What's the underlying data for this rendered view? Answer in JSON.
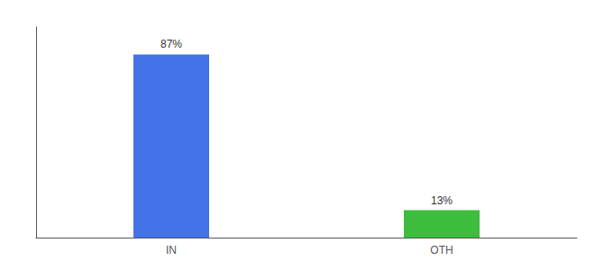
{
  "chart_data": {
    "type": "bar",
    "categories": [
      "IN",
      "OTH"
    ],
    "values": [
      87,
      13
    ],
    "colors": [
      "#4472e8",
      "#3dbc3d"
    ],
    "value_labels": [
      "87%",
      "13%"
    ],
    "data_labels": true,
    "ylim": [
      0,
      100
    ],
    "yticks": [],
    "grid": false,
    "tick_labels": "x"
  }
}
